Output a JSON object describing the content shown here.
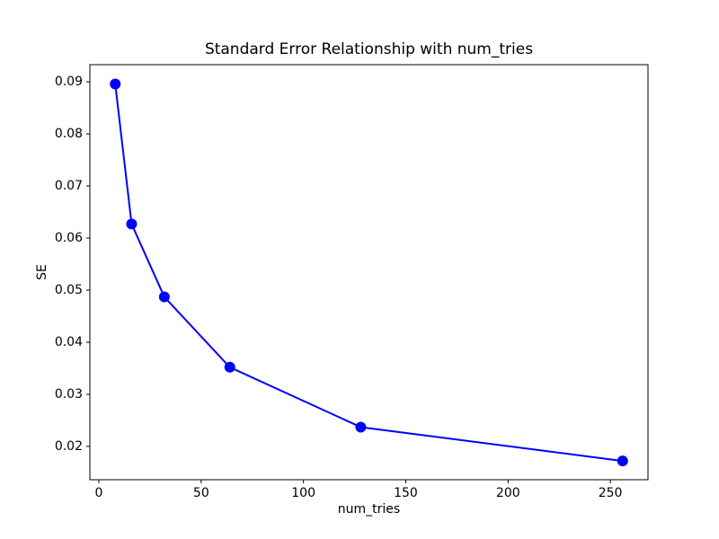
{
  "chart_data": {
    "type": "line",
    "title": "Standard Error Relationship with num_tries",
    "xlabel": "num_tries",
    "ylabel": "SE",
    "series": [
      {
        "name": "SE",
        "x": [
          8,
          16,
          32,
          64,
          128,
          256
        ],
        "y": [
          0.0896,
          0.0627,
          0.0487,
          0.0352,
          0.0237,
          0.0172
        ]
      }
    ],
    "xticks": [
      0,
      50,
      100,
      150,
      200,
      250
    ],
    "yticks": [
      0.02,
      0.03,
      0.04,
      0.05,
      0.06,
      0.07,
      0.08,
      0.09
    ],
    "ytick_decimals": 2,
    "xlim": [
      -4.4,
      268.4
    ],
    "ylim": [
      0.0136,
      0.0933
    ],
    "grid": false,
    "legend": null,
    "line_color": "#0000ff",
    "marker": "circle",
    "marker_radius": 6,
    "line_width": 2,
    "spine_color": "#000000",
    "background_color": "#ffffff"
  }
}
